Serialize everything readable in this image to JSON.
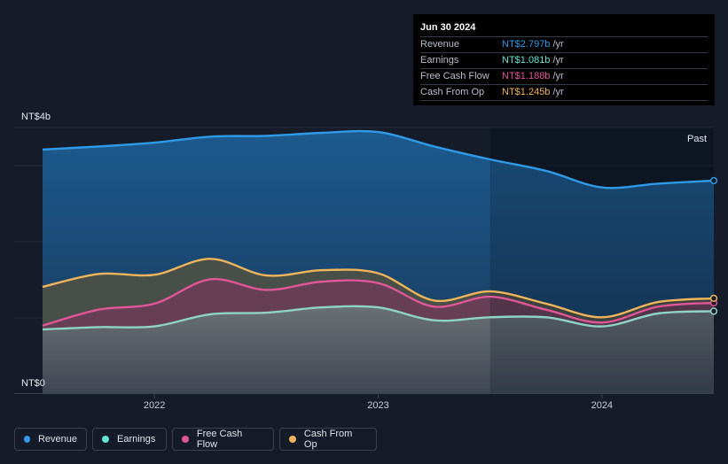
{
  "tooltip": {
    "date": "Jun 30 2024",
    "rows": [
      {
        "label": "Revenue",
        "value": "NT$2.797b",
        "unit": "/yr",
        "color": "#2f9be8"
      },
      {
        "label": "Earnings",
        "value": "NT$1.081b",
        "unit": "/yr",
        "color": "#63e6d2"
      },
      {
        "label": "Free Cash Flow",
        "value": "NT$1.188b",
        "unit": "/yr",
        "color": "#e05697"
      },
      {
        "label": "Cash From Op",
        "value": "NT$1.245b",
        "unit": "/yr",
        "color": "#f0b55a"
      }
    ]
  },
  "legend": [
    {
      "label": "Revenue",
      "color": "#2f9be8"
    },
    {
      "label": "Earnings",
      "color": "#63e6d2"
    },
    {
      "label": "Free Cash Flow",
      "color": "#e05697"
    },
    {
      "label": "Cash From Op",
      "color": "#f0b55a"
    }
  ],
  "chart_data": {
    "type": "area",
    "y_top_label": "NT$4b",
    "y_bottom_label": "NT$0",
    "past_label": "Past",
    "ylim": [
      0,
      3.5
    ],
    "xlim": [
      2021.5,
      2024.5
    ],
    "forecast_start": 2023.5,
    "x_ticks": [
      2022,
      2023,
      2024
    ],
    "x_tick_labels": [
      "2022",
      "2023",
      "2024"
    ],
    "grid": true,
    "series": [
      {
        "name": "Revenue",
        "color": "#2f9be8",
        "points": [
          [
            2021.5,
            3.21
          ],
          [
            2021.75,
            3.25
          ],
          [
            2022.0,
            3.3
          ],
          [
            2022.25,
            3.38
          ],
          [
            2022.5,
            3.39
          ],
          [
            2022.75,
            3.43
          ],
          [
            2023.0,
            3.44
          ],
          [
            2023.25,
            3.25
          ],
          [
            2023.5,
            3.08
          ],
          [
            2023.75,
            2.93
          ],
          [
            2024.0,
            2.71
          ],
          [
            2024.25,
            2.76
          ],
          [
            2024.5,
            2.8
          ]
        ]
      },
      {
        "name": "Cash From Op",
        "color": "#f0b55a",
        "points": [
          [
            2021.5,
            1.4
          ],
          [
            2021.75,
            1.57
          ],
          [
            2022.0,
            1.56
          ],
          [
            2022.25,
            1.77
          ],
          [
            2022.5,
            1.55
          ],
          [
            2022.75,
            1.62
          ],
          [
            2023.0,
            1.58
          ],
          [
            2023.25,
            1.22
          ],
          [
            2023.5,
            1.34
          ],
          [
            2023.75,
            1.18
          ],
          [
            2024.0,
            1.0
          ],
          [
            2024.25,
            1.2
          ],
          [
            2024.5,
            1.25
          ]
        ]
      },
      {
        "name": "Free Cash Flow",
        "color": "#e05697",
        "points": [
          [
            2021.5,
            0.89
          ],
          [
            2021.75,
            1.1
          ],
          [
            2022.0,
            1.18
          ],
          [
            2022.25,
            1.5
          ],
          [
            2022.5,
            1.36
          ],
          [
            2022.75,
            1.47
          ],
          [
            2023.0,
            1.45
          ],
          [
            2023.25,
            1.14
          ],
          [
            2023.5,
            1.27
          ],
          [
            2023.75,
            1.1
          ],
          [
            2024.0,
            0.93
          ],
          [
            2024.25,
            1.14
          ],
          [
            2024.5,
            1.19
          ]
        ]
      },
      {
        "name": "Earnings",
        "color": "#8fd3c5",
        "points": [
          [
            2021.5,
            0.84
          ],
          [
            2021.75,
            0.87
          ],
          [
            2022.0,
            0.88
          ],
          [
            2022.25,
            1.04
          ],
          [
            2022.5,
            1.06
          ],
          [
            2022.75,
            1.13
          ],
          [
            2023.0,
            1.13
          ],
          [
            2023.25,
            0.96
          ],
          [
            2023.5,
            1.0
          ],
          [
            2023.75,
            1.0
          ],
          [
            2024.0,
            0.88
          ],
          [
            2024.25,
            1.05
          ],
          [
            2024.5,
            1.08
          ]
        ]
      }
    ]
  }
}
